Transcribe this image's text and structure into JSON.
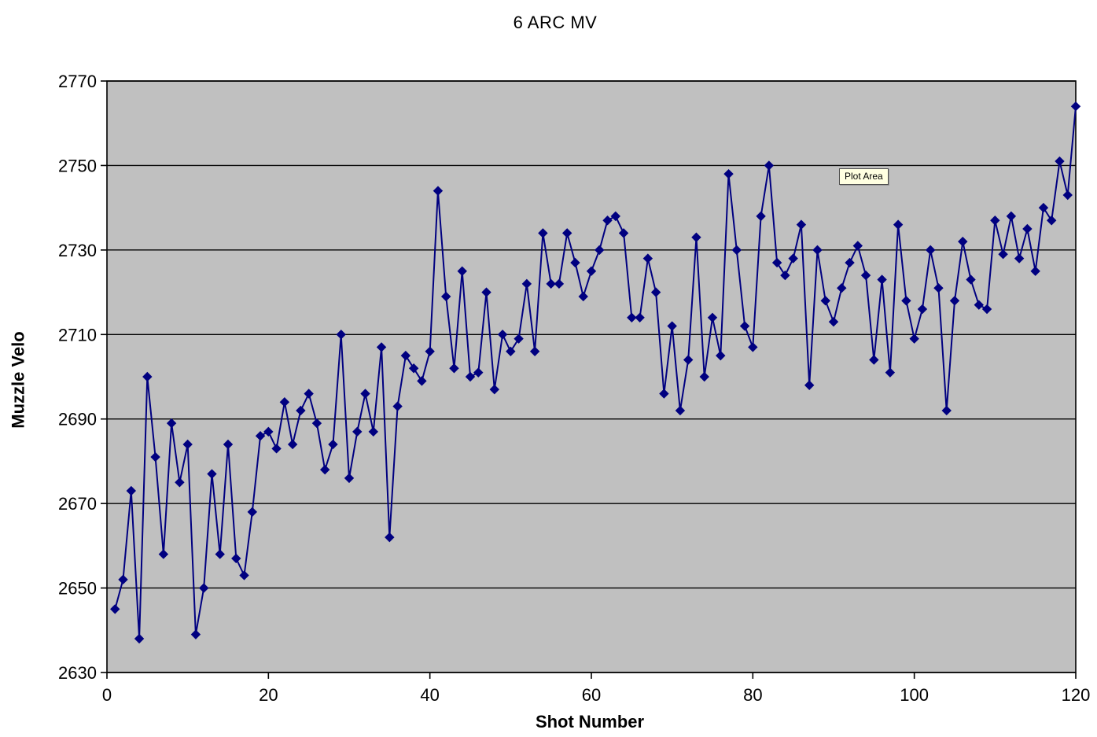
{
  "chart_data": {
    "type": "line",
    "title": "6 ARC MV",
    "xlabel": "Shot Number",
    "ylabel": "Muzzle Velo",
    "xlim": [
      0,
      120
    ],
    "ylim": [
      2630,
      2770
    ],
    "x_ticks": [
      0,
      20,
      40,
      60,
      80,
      100,
      120
    ],
    "y_ticks": [
      2630,
      2650,
      2670,
      2690,
      2710,
      2730,
      2750,
      2770
    ],
    "grid": "horizontal",
    "legend": "none",
    "marker": "diamond",
    "x_first_shot": 1,
    "x_step": 1,
    "values": [
      2645,
      2652,
      2673,
      2638,
      2700,
      2681,
      2658,
      2689,
      2675,
      2684,
      2639,
      2650,
      2677,
      2658,
      2684,
      2657,
      2653,
      2668,
      2686,
      2687,
      2683,
      2694,
      2684,
      2692,
      2696,
      2689,
      2678,
      2684,
      2710,
      2676,
      2687,
      2696,
      2687,
      2707,
      2662,
      2693,
      2705,
      2702,
      2699,
      2706,
      2744,
      2719,
      2702,
      2725,
      2700,
      2701,
      2720,
      2697,
      2710,
      2706,
      2709,
      2722,
      2706,
      2734,
      2722,
      2722,
      2734,
      2727,
      2719,
      2725,
      2730,
      2737,
      2738,
      2734,
      2714,
      2714,
      2728,
      2720,
      2696,
      2712,
      2692,
      2704,
      2733,
      2700,
      2714,
      2705,
      2748,
      2730,
      2712,
      2707,
      2738,
      2750,
      2727,
      2724,
      2728,
      2736,
      2698,
      2730,
      2718,
      2713,
      2721,
      2727,
      2731,
      2724,
      2704,
      2723,
      2701,
      2736,
      2718,
      2709,
      2716,
      2730,
      2721,
      2692,
      2718,
      2732,
      2723,
      2717,
      2716,
      2737,
      2729,
      2738,
      2728,
      2735,
      2725,
      2740,
      2737,
      2751,
      2743,
      2764
    ],
    "colors": {
      "series_line": "#000080",
      "marker_fill": "#000080",
      "plot_background": "#C0C0C0",
      "gridline": "#000000",
      "axis": "#000000",
      "tooltip_background": "#FFFFE1"
    }
  },
  "tooltip": {
    "label": "Plot Area"
  }
}
